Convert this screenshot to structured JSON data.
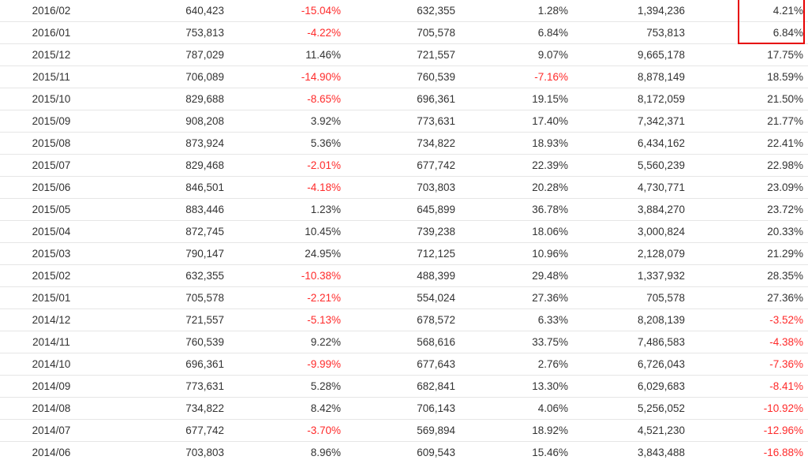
{
  "table": {
    "rows": [
      {
        "period": "2016/02",
        "v1": "640,423",
        "p1": "-15.04%",
        "v2": "632,355",
        "p2": "1.28%",
        "v3": "1,394,236",
        "p3": "4.21%"
      },
      {
        "period": "2016/01",
        "v1": "753,813",
        "p1": "-4.22%",
        "v2": "705,578",
        "p2": "6.84%",
        "v3": "753,813",
        "p3": "6.84%"
      },
      {
        "period": "2015/12",
        "v1": "787,029",
        "p1": "11.46%",
        "v2": "721,557",
        "p2": "9.07%",
        "v3": "9,665,178",
        "p3": "17.75%"
      },
      {
        "period": "2015/11",
        "v1": "706,089",
        "p1": "-14.90%",
        "v2": "760,539",
        "p2": "-7.16%",
        "v3": "8,878,149",
        "p3": "18.59%"
      },
      {
        "period": "2015/10",
        "v1": "829,688",
        "p1": "-8.65%",
        "v2": "696,361",
        "p2": "19.15%",
        "v3": "8,172,059",
        "p3": "21.50%"
      },
      {
        "period": "2015/09",
        "v1": "908,208",
        "p1": "3.92%",
        "v2": "773,631",
        "p2": "17.40%",
        "v3": "7,342,371",
        "p3": "21.77%"
      },
      {
        "period": "2015/08",
        "v1": "873,924",
        "p1": "5.36%",
        "v2": "734,822",
        "p2": "18.93%",
        "v3": "6,434,162",
        "p3": "22.41%"
      },
      {
        "period": "2015/07",
        "v1": "829,468",
        "p1": "-2.01%",
        "v2": "677,742",
        "p2": "22.39%",
        "v3": "5,560,239",
        "p3": "22.98%"
      },
      {
        "period": "2015/06",
        "v1": "846,501",
        "p1": "-4.18%",
        "v2": "703,803",
        "p2": "20.28%",
        "v3": "4,730,771",
        "p3": "23.09%"
      },
      {
        "period": "2015/05",
        "v1": "883,446",
        "p1": "1.23%",
        "v2": "645,899",
        "p2": "36.78%",
        "v3": "3,884,270",
        "p3": "23.72%"
      },
      {
        "period": "2015/04",
        "v1": "872,745",
        "p1": "10.45%",
        "v2": "739,238",
        "p2": "18.06%",
        "v3": "3,000,824",
        "p3": "20.33%"
      },
      {
        "period": "2015/03",
        "v1": "790,147",
        "p1": "24.95%",
        "v2": "712,125",
        "p2": "10.96%",
        "v3": "2,128,079",
        "p3": "21.29%"
      },
      {
        "period": "2015/02",
        "v1": "632,355",
        "p1": "-10.38%",
        "v2": "488,399",
        "p2": "29.48%",
        "v3": "1,337,932",
        "p3": "28.35%"
      },
      {
        "period": "2015/01",
        "v1": "705,578",
        "p1": "-2.21%",
        "v2": "554,024",
        "p2": "27.36%",
        "v3": "705,578",
        "p3": "27.36%"
      },
      {
        "period": "2014/12",
        "v1": "721,557",
        "p1": "-5.13%",
        "v2": "678,572",
        "p2": "6.33%",
        "v3": "8,208,139",
        "p3": "-3.52%"
      },
      {
        "period": "2014/11",
        "v1": "760,539",
        "p1": "9.22%",
        "v2": "568,616",
        "p2": "33.75%",
        "v3": "7,486,583",
        "p3": "-4.38%"
      },
      {
        "period": "2014/10",
        "v1": "696,361",
        "p1": "-9.99%",
        "v2": "677,643",
        "p2": "2.76%",
        "v3": "6,726,043",
        "p3": "-7.36%"
      },
      {
        "period": "2014/09",
        "v1": "773,631",
        "p1": "5.28%",
        "v2": "682,841",
        "p2": "13.30%",
        "v3": "6,029,683",
        "p3": "-8.41%"
      },
      {
        "period": "2014/08",
        "v1": "734,822",
        "p1": "8.42%",
        "v2": "706,143",
        "p2": "4.06%",
        "v3": "5,256,052",
        "p3": "-10.92%"
      },
      {
        "period": "2014/07",
        "v1": "677,742",
        "p1": "-3.70%",
        "v2": "569,894",
        "p2": "18.92%",
        "v3": "4,521,230",
        "p3": "-12.96%"
      },
      {
        "period": "2014/06",
        "v1": "703,803",
        "p1": "8.96%",
        "v2": "609,543",
        "p2": "15.46%",
        "v3": "3,843,488",
        "p3": "-16.88%"
      }
    ]
  },
  "colors": {
    "negative": "#ff2a2a",
    "text": "#333333",
    "highlight_border": "#e60000",
    "row_border": "#e6e6e6"
  }
}
